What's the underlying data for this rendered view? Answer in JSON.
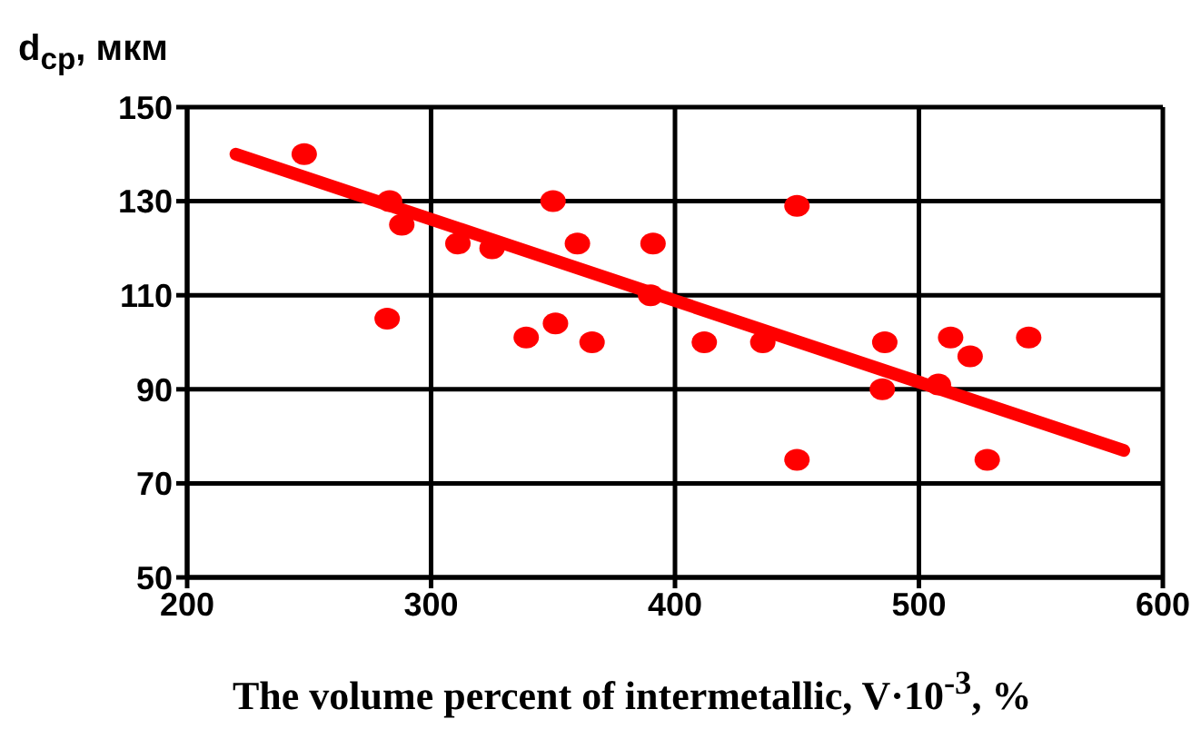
{
  "chart_data": {
    "type": "scatter",
    "ylabel": "d$_{ср}$, мкм",
    "xlabel": "The volume percent of intermetallic, V·10$^{-3}$, %",
    "xlim": [
      200,
      600
    ],
    "xticks": [
      200,
      300,
      400,
      500,
      600
    ],
    "ylim": [
      50,
      150
    ],
    "yticks": [
      50,
      70,
      90,
      110,
      130,
      150
    ],
    "grid": true,
    "marker": "circle",
    "series": [
      {
        "color": "#ff0000",
        "x": [
          248,
          283,
          288,
          282,
          311,
          325,
          350,
          360,
          391,
          390,
          339,
          351,
          366,
          412,
          450,
          436,
          486,
          485,
          513,
          521,
          545,
          508,
          450,
          528
        ],
        "values": [
          140,
          130,
          125,
          105,
          121,
          120,
          130,
          121,
          121,
          110,
          101,
          104,
          100,
          100,
          129,
          100,
          100,
          90,
          101,
          97,
          101,
          91,
          75,
          75
        ]
      },
      {
        "type": "line",
        "color": "#ff0000",
        "marker": "none",
        "x": [
          220,
          584
        ],
        "values": [
          140,
          77
        ]
      }
    ]
  }
}
